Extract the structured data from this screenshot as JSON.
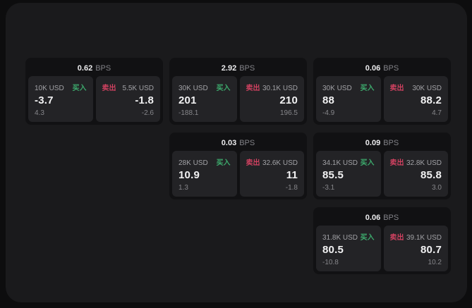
{
  "labels": {
    "bps_unit": "BPS",
    "buy_tag": "买入",
    "sell_tag": "卖出"
  },
  "colors": {
    "buy_green": "#3dab6d",
    "sell_red": "#cf4160",
    "surface": "#1a1a1c",
    "card": "#111113",
    "panel": "#232326"
  },
  "cards": [
    {
      "bps": "0.62",
      "buy": {
        "amount": "10K USD",
        "price": "-3.7",
        "delta": "4.3"
      },
      "sell": {
        "amount": "5.5K USD",
        "price": "-1.8",
        "delta": "-2.6"
      }
    },
    {
      "bps": "2.92",
      "buy": {
        "amount": "30K USD",
        "price": "201",
        "delta": "-188.1"
      },
      "sell": {
        "amount": "30.1K USD",
        "price": "210",
        "delta": "196.5"
      }
    },
    {
      "bps": "0.06",
      "buy": {
        "amount": "30K USD",
        "price": "88",
        "delta": "-4.9"
      },
      "sell": {
        "amount": "30K USD",
        "price": "88.2",
        "delta": "4.7"
      }
    },
    {
      "bps": "0.03",
      "buy": {
        "amount": "28K USD",
        "price": "10.9",
        "delta": "1.3"
      },
      "sell": {
        "amount": "32.6K USD",
        "price": "11",
        "delta": "-1.8"
      }
    },
    {
      "bps": "0.09",
      "buy": {
        "amount": "34.1K USD",
        "price": "85.5",
        "delta": "-3.1"
      },
      "sell": {
        "amount": "32.8K USD",
        "price": "85.8",
        "delta": "3.0"
      }
    },
    {
      "bps": "0.06",
      "buy": {
        "amount": "31.8K USD",
        "price": "80.5",
        "delta": "-10.8"
      },
      "sell": {
        "amount": "39.1K USD",
        "price": "80.7",
        "delta": "10.2"
      }
    }
  ]
}
